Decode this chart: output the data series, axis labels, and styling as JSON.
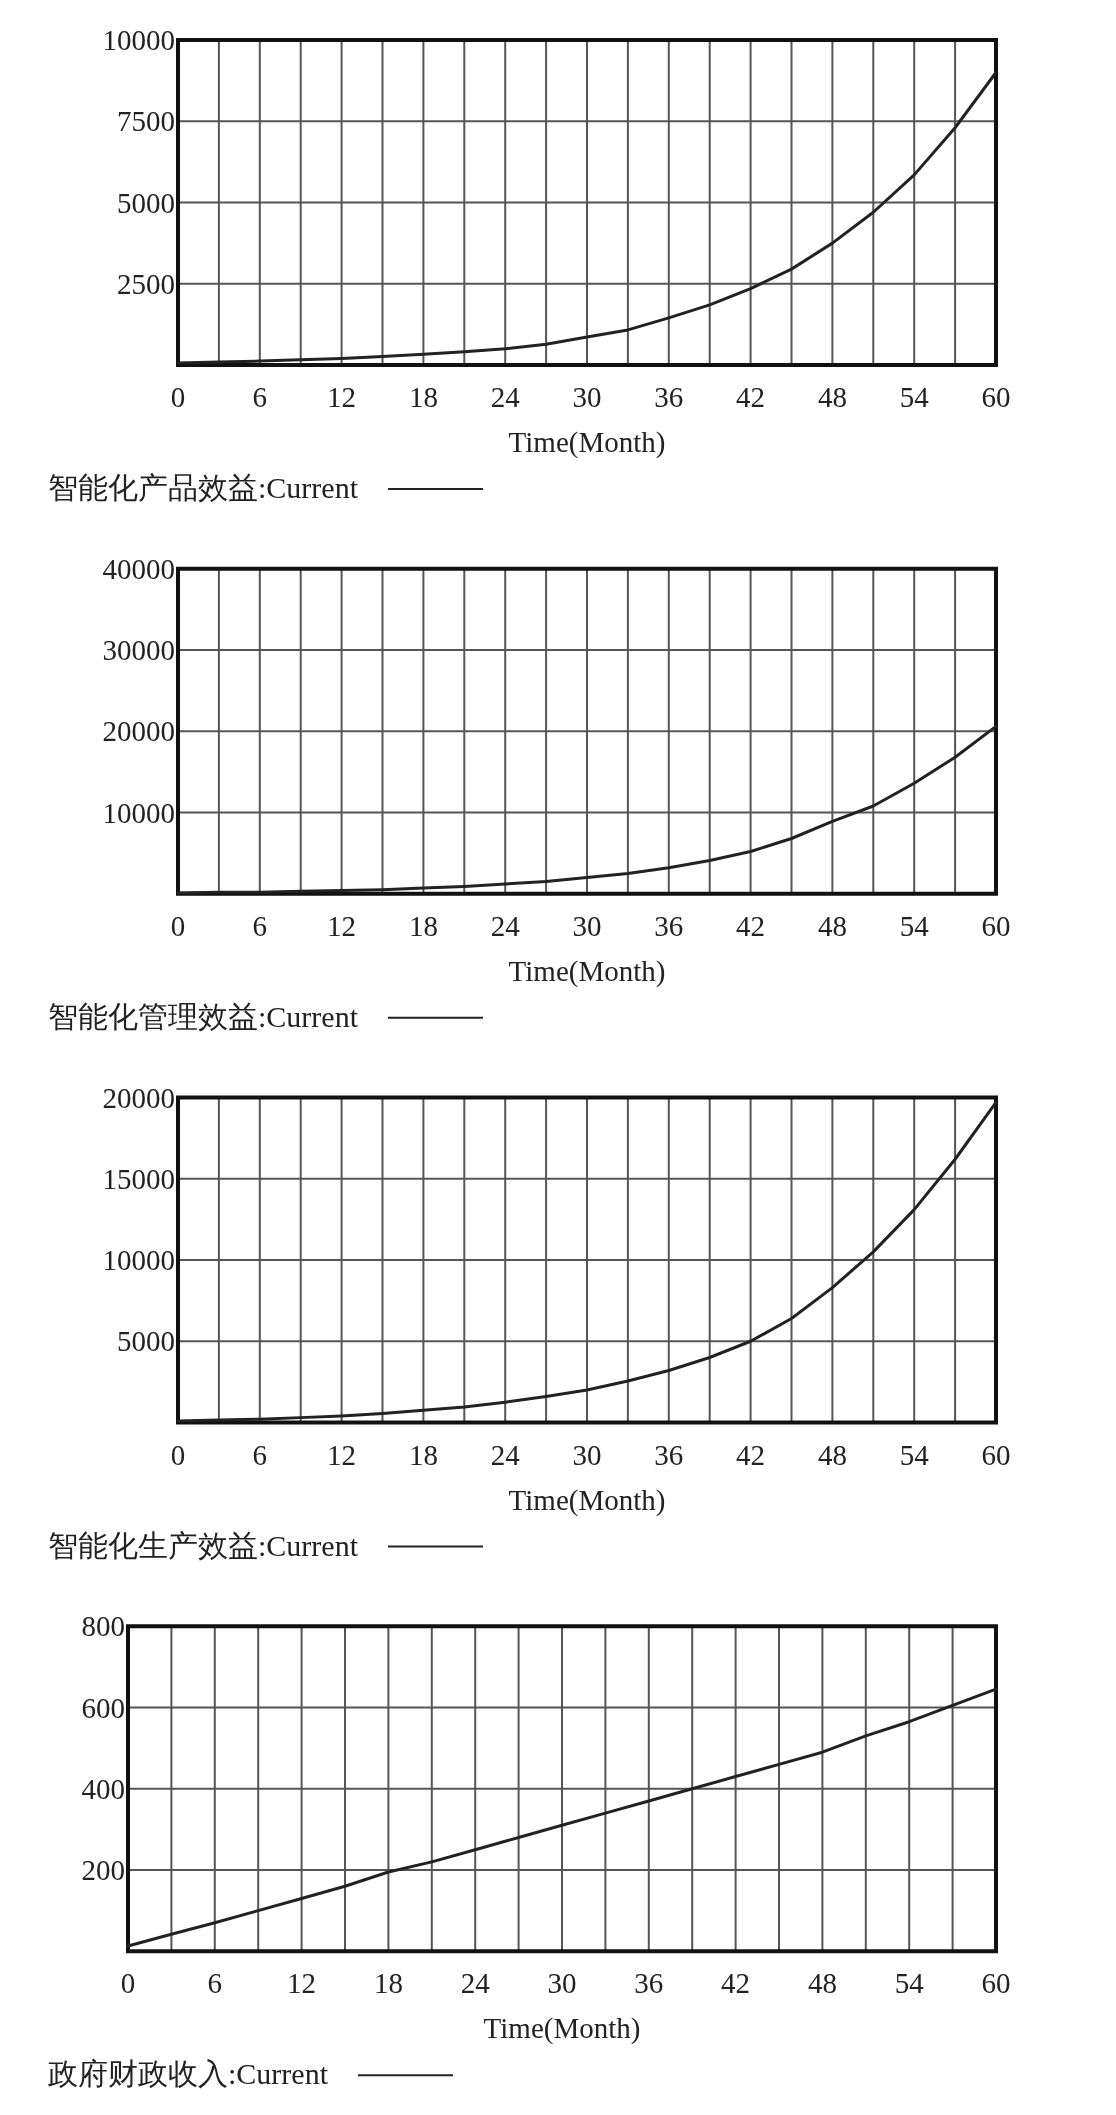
{
  "chart_data": [
    {
      "type": "line",
      "xlabel": "Time(Month)",
      "x": [
        0,
        3,
        6,
        9,
        12,
        15,
        18,
        21,
        24,
        27,
        30,
        33,
        36,
        39,
        42,
        45,
        48,
        51,
        54,
        57,
        60
      ],
      "series": [
        {
          "name": "智能化产品效益:Current",
          "color": "#222222",
          "values": [
            60,
            90,
            120,
            160,
            200,
            260,
            330,
            410,
            500,
            640,
            860,
            1080,
            1450,
            1850,
            2350,
            2950,
            3750,
            4700,
            5850,
            7300,
            9000
          ]
        }
      ],
      "xlim": [
        0,
        60
      ],
      "xticks": [
        0,
        {
          "value": 3,
          "label": null
        },
        6,
        {
          "value": 9,
          "label": null
        },
        12,
        {
          "value": 15,
          "label": null
        },
        18,
        {
          "value": 21,
          "label": null
        },
        24,
        {
          "value": 27,
          "label": null
        },
        30,
        {
          "value": 33,
          "label": null
        },
        36,
        {
          "value": 39,
          "label": null
        },
        42,
        {
          "value": 45,
          "label": null
        },
        48,
        {
          "value": 51,
          "label": null
        },
        54,
        {
          "value": 57,
          "label": null
        },
        60
      ],
      "ylim": [
        0,
        10000
      ],
      "yticks": [
        2500,
        5000,
        7500,
        10000
      ],
      "grid": true,
      "legend": "bottom"
    },
    {
      "type": "line",
      "xlabel": "Time(Month)",
      "x": [
        0,
        3,
        6,
        9,
        12,
        15,
        18,
        21,
        24,
        27,
        30,
        33,
        36,
        39,
        42,
        45,
        48,
        51,
        54,
        57,
        60
      ],
      "series": [
        {
          "name": "智能化管理效益:Current",
          "color": "#222222",
          "values": [
            100,
            200,
            200,
            300,
            400,
            500,
            700,
            900,
            1200,
            1500,
            2000,
            2500,
            3200,
            4100,
            5200,
            6800,
            8900,
            10800,
            13600,
            16800,
            20600
          ]
        }
      ],
      "xlim": [
        0,
        60
      ],
      "xticks": [
        0,
        {
          "value": 3,
          "label": null
        },
        6,
        {
          "value": 9,
          "label": null
        },
        12,
        {
          "value": 15,
          "label": null
        },
        18,
        {
          "value": 21,
          "label": null
        },
        24,
        {
          "value": 27,
          "label": null
        },
        30,
        {
          "value": 33,
          "label": null
        },
        36,
        {
          "value": 39,
          "label": null
        },
        42,
        {
          "value": 45,
          "label": null
        },
        48,
        {
          "value": 51,
          "label": null
        },
        54,
        {
          "value": 57,
          "label": null
        },
        60
      ],
      "ylim": [
        0,
        40000
      ],
      "yticks": [
        10000,
        20000,
        30000,
        40000
      ],
      "grid": true,
      "legend": "bottom"
    },
    {
      "type": "line",
      "xlabel": "Time(Month)",
      "x": [
        0,
        3,
        6,
        9,
        12,
        15,
        18,
        21,
        24,
        27,
        30,
        33,
        36,
        39,
        42,
        45,
        48,
        51,
        54,
        57,
        60
      ],
      "series": [
        {
          "name": "智能化生产效益:Current",
          "color": "#222222",
          "values": [
            100,
            150,
            200,
            300,
            400,
            550,
            750,
            950,
            1250,
            1600,
            2000,
            2550,
            3200,
            4000,
            5000,
            6400,
            8300,
            10500,
            13100,
            16200,
            19700
          ]
        }
      ],
      "xlim": [
        0,
        60
      ],
      "xticks": [
        0,
        {
          "value": 3,
          "label": null
        },
        6,
        {
          "value": 9,
          "label": null
        },
        12,
        {
          "value": 15,
          "label": null
        },
        18,
        {
          "value": 21,
          "label": null
        },
        24,
        {
          "value": 27,
          "label": null
        },
        30,
        {
          "value": 33,
          "label": null
        },
        36,
        {
          "value": 39,
          "label": null
        },
        42,
        {
          "value": 45,
          "label": null
        },
        48,
        {
          "value": 51,
          "label": null
        },
        54,
        {
          "value": 57,
          "label": null
        },
        60
      ],
      "ylim": [
        0,
        20000
      ],
      "yticks": [
        5000,
        10000,
        15000,
        20000
      ],
      "grid": true,
      "legend": "bottom"
    },
    {
      "type": "line",
      "xlabel": "Time(Month)",
      "x": [
        0,
        3,
        6,
        9,
        12,
        15,
        18,
        21,
        24,
        27,
        30,
        33,
        36,
        39,
        42,
        45,
        48,
        51,
        54,
        57,
        60
      ],
      "series": [
        {
          "name": "政府财政收入:Current",
          "color": "#222222",
          "values": [
            13,
            42,
            70,
            100,
            130,
            160,
            195,
            220,
            250,
            280,
            310,
            340,
            370,
            400,
            430,
            460,
            490,
            530,
            565,
            605,
            645
          ]
        }
      ],
      "xlim": [
        0,
        60
      ],
      "xticks": [
        0,
        {
          "value": 3,
          "label": null
        },
        6,
        {
          "value": 9,
          "label": null
        },
        12,
        {
          "value": 15,
          "label": null
        },
        18,
        {
          "value": 21,
          "label": null
        },
        24,
        {
          "value": 27,
          "label": null
        },
        30,
        {
          "value": 33,
          "label": null
        },
        36,
        {
          "value": 39,
          "label": null
        },
        42,
        {
          "value": 45,
          "label": null
        },
        48,
        {
          "value": 51,
          "label": null
        },
        54,
        {
          "value": 57,
          "label": null
        },
        60
      ],
      "ylim": [
        0,
        800
      ],
      "yticks": [
        200,
        400,
        600,
        800
      ],
      "grid": true,
      "legend": "bottom"
    }
  ]
}
